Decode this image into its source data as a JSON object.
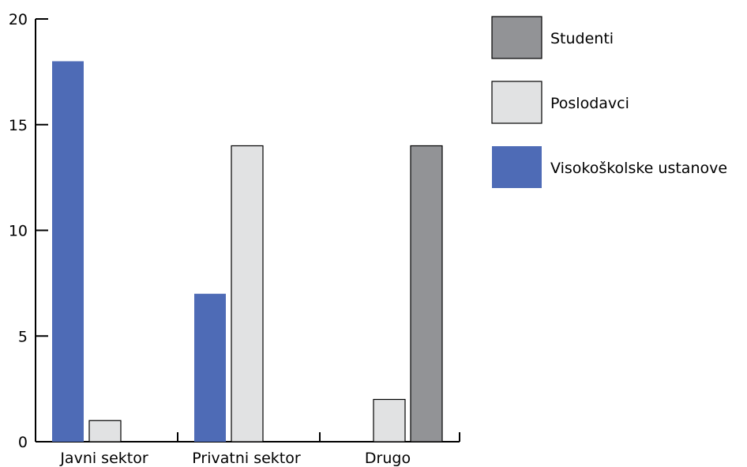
{
  "chart_data": {
    "type": "bar",
    "categories": [
      "Javni sektor",
      "Privatni sektor",
      "Drugo"
    ],
    "series": [
      {
        "name": "Visokoškolske ustanove",
        "values": [
          18,
          7,
          0
        ],
        "color": "#4e6bb6"
      },
      {
        "name": "Poslodavci",
        "values": [
          1,
          14,
          2
        ],
        "color": "#e1e2e3"
      },
      {
        "name": "Studenti",
        "values": [
          0,
          0,
          14
        ],
        "color": "#929396"
      }
    ],
    "legend_order": [
      "Studenti",
      "Poslodavci",
      "Visokoškolske ustanove"
    ],
    "legend_position": "top-right",
    "ylim": [
      0,
      20
    ],
    "yticks": [
      0,
      5,
      10,
      15,
      20
    ],
    "ytick_labels": [
      "0",
      "5",
      "10",
      "15",
      "20"
    ],
    "grid": false,
    "title": "",
    "xlabel": "",
    "ylabel": ""
  }
}
